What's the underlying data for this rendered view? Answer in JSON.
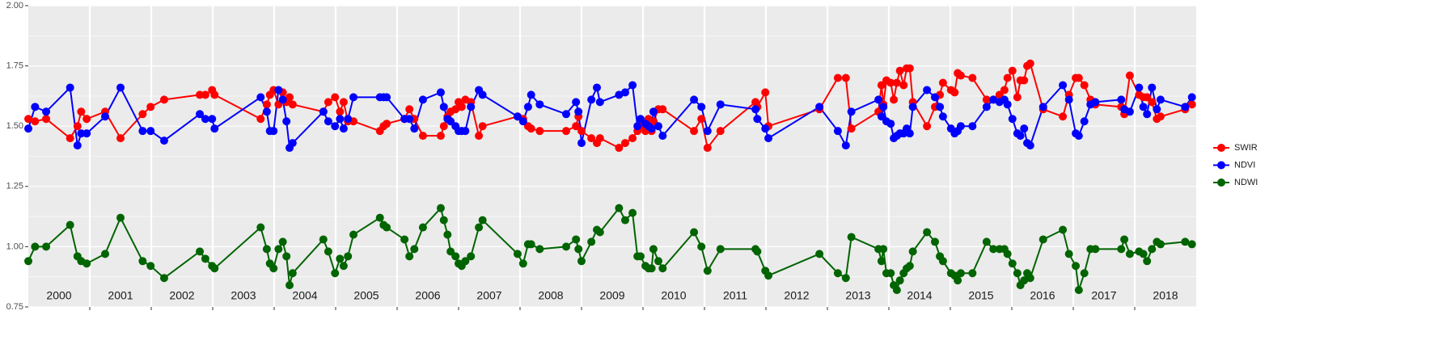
{
  "chart_data": {
    "type": "line",
    "x": [
      2000.0,
      2000.11,
      2000.29,
      2000.68,
      2000.8,
      2000.86,
      2000.95,
      2001.25,
      2001.5,
      2001.86,
      2001.99,
      2002.21,
      2002.79,
      2002.88,
      2002.99,
      2003.03,
      2003.78,
      2003.88,
      2003.93,
      2003.99,
      2004.07,
      2004.14,
      2004.2,
      2004.25,
      2004.3,
      2004.8,
      2004.88,
      2004.99,
      2005.07,
      2005.13,
      2005.2,
      2005.29,
      2005.72,
      2005.78,
      2005.83,
      2006.12,
      2006.2,
      2006.28,
      2006.42,
      2006.71,
      2006.76,
      2006.82,
      2006.87,
      2006.95,
      2007.0,
      2007.05,
      2007.11,
      2007.2,
      2007.33,
      2007.39,
      2007.96,
      2008.05,
      2008.13,
      2008.18,
      2008.32,
      2008.75,
      2008.91,
      2008.95,
      2009.0,
      2009.16,
      2009.25,
      2009.3,
      2009.61,
      2009.71,
      2009.83,
      2009.91,
      2009.96,
      2010.04,
      2010.09,
      2010.14,
      2010.17,
      2010.25,
      2010.32,
      2010.83,
      2010.95,
      2011.05,
      2011.26,
      2011.83,
      2011.86,
      2011.99,
      2012.04,
      2012.87,
      2013.17,
      2013.3,
      2013.39,
      2013.83,
      2013.88,
      2013.91,
      2013.96,
      2014.03,
      2014.08,
      2014.13,
      2014.18,
      2014.24,
      2014.29,
      2014.34,
      2014.39,
      2014.62,
      2014.75,
      2014.83,
      2014.88,
      2015.01,
      2015.07,
      2015.12,
      2015.17,
      2015.36,
      2015.59,
      2015.7,
      2015.8,
      2015.88,
      2015.93,
      2016.01,
      2016.09,
      2016.14,
      2016.2,
      2016.25,
      2016.3,
      2016.51,
      2016.83,
      2016.93,
      2017.04,
      2017.09,
      2017.18,
      2017.28,
      2017.36,
      2017.78,
      2017.83,
      2017.92,
      2018.07,
      2018.14,
      2018.2,
      2018.28,
      2018.36,
      2018.42,
      2018.82,
      2018.93
    ],
    "series": [
      {
        "name": "SWIR",
        "color": "#ff0000",
        "values": [
          1.53,
          1.52,
          1.53,
          1.45,
          1.5,
          1.56,
          1.53,
          1.56,
          1.45,
          1.55,
          1.58,
          1.61,
          1.63,
          1.63,
          1.65,
          1.63,
          1.53,
          1.59,
          1.63,
          1.65,
          1.59,
          1.64,
          1.6,
          1.62,
          1.59,
          1.56,
          1.6,
          1.62,
          1.56,
          1.6,
          1.52,
          1.52,
          1.48,
          1.5,
          1.51,
          1.53,
          1.57,
          1.53,
          1.46,
          1.46,
          1.5,
          1.54,
          1.56,
          1.57,
          1.6,
          1.58,
          1.61,
          1.6,
          1.46,
          1.5,
          1.54,
          1.53,
          1.5,
          1.49,
          1.48,
          1.48,
          1.5,
          1.54,
          1.48,
          1.45,
          1.43,
          1.45,
          1.41,
          1.43,
          1.45,
          1.48,
          1.5,
          1.48,
          1.53,
          1.48,
          1.52,
          1.57,
          1.57,
          1.48,
          1.53,
          1.41,
          1.48,
          1.6,
          1.58,
          1.64,
          1.5,
          1.57,
          1.7,
          1.7,
          1.49,
          1.56,
          1.67,
          1.59,
          1.69,
          1.68,
          1.61,
          1.68,
          1.73,
          1.67,
          1.74,
          1.74,
          1.6,
          1.5,
          1.58,
          1.63,
          1.68,
          1.65,
          1.64,
          1.72,
          1.71,
          1.7,
          1.61,
          1.61,
          1.63,
          1.65,
          1.7,
          1.73,
          1.62,
          1.69,
          1.69,
          1.75,
          1.76,
          1.57,
          1.54,
          1.63,
          1.7,
          1.7,
          1.67,
          1.61,
          1.59,
          1.58,
          1.55,
          1.71,
          1.63,
          1.62,
          1.62,
          1.6,
          1.53,
          1.54,
          1.57,
          1.59
        ]
      },
      {
        "name": "NDVI",
        "color": "#0000ff",
        "values": [
          1.49,
          1.58,
          1.56,
          1.66,
          1.42,
          1.47,
          1.47,
          1.54,
          1.66,
          1.48,
          1.48,
          1.44,
          1.55,
          1.53,
          1.53,
          1.49,
          1.62,
          1.56,
          1.48,
          1.48,
          1.65,
          1.61,
          1.52,
          1.41,
          1.43,
          1.56,
          1.52,
          1.5,
          1.53,
          1.49,
          1.53,
          1.62,
          1.62,
          1.62,
          1.62,
          1.53,
          1.53,
          1.49,
          1.61,
          1.64,
          1.58,
          1.53,
          1.52,
          1.5,
          1.48,
          1.48,
          1.48,
          1.58,
          1.65,
          1.63,
          1.54,
          1.52,
          1.58,
          1.63,
          1.59,
          1.55,
          1.6,
          1.56,
          1.43,
          1.61,
          1.66,
          1.6,
          1.63,
          1.64,
          1.67,
          1.5,
          1.53,
          1.51,
          1.5,
          1.49,
          1.56,
          1.5,
          1.46,
          1.61,
          1.58,
          1.48,
          1.59,
          1.57,
          1.53,
          1.49,
          1.45,
          1.58,
          1.48,
          1.42,
          1.56,
          1.61,
          1.54,
          1.58,
          1.52,
          1.51,
          1.45,
          1.46,
          1.47,
          1.47,
          1.49,
          1.47,
          1.58,
          1.65,
          1.62,
          1.58,
          1.54,
          1.49,
          1.47,
          1.48,
          1.5,
          1.5,
          1.58,
          1.61,
          1.6,
          1.61,
          1.59,
          1.53,
          1.47,
          1.46,
          1.49,
          1.43,
          1.42,
          1.58,
          1.67,
          1.61,
          1.47,
          1.46,
          1.52,
          1.59,
          1.6,
          1.61,
          1.57,
          1.56,
          1.66,
          1.58,
          1.55,
          1.66,
          1.57,
          1.61,
          1.58,
          1.62
        ]
      },
      {
        "name": "NDWI",
        "color": "#006400",
        "values": [
          0.94,
          1.0,
          1.0,
          1.09,
          0.96,
          0.94,
          0.93,
          0.97,
          1.12,
          0.94,
          0.92,
          0.87,
          0.98,
          0.95,
          0.92,
          0.91,
          1.08,
          0.99,
          0.93,
          0.91,
          0.99,
          1.02,
          0.96,
          0.84,
          0.89,
          1.03,
          0.98,
          0.89,
          0.95,
          0.92,
          0.96,
          1.05,
          1.12,
          1.09,
          1.08,
          1.03,
          0.96,
          0.99,
          1.08,
          1.16,
          1.11,
          1.05,
          0.98,
          0.96,
          0.93,
          0.92,
          0.94,
          0.96,
          1.08,
          1.11,
          0.97,
          0.93,
          1.01,
          1.01,
          0.99,
          1.0,
          1.03,
          0.99,
          0.94,
          1.02,
          1.07,
          1.06,
          1.16,
          1.11,
          1.14,
          0.96,
          0.96,
          0.92,
          0.91,
          0.91,
          0.99,
          0.94,
          0.91,
          1.06,
          1.0,
          0.9,
          0.99,
          0.99,
          0.98,
          0.9,
          0.88,
          0.97,
          0.89,
          0.87,
          1.04,
          0.99,
          0.94,
          0.99,
          0.89,
          0.89,
          0.84,
          0.82,
          0.86,
          0.89,
          0.91,
          0.92,
          0.98,
          1.06,
          1.02,
          0.96,
          0.94,
          0.89,
          0.88,
          0.86,
          0.89,
          0.89,
          1.02,
          0.99,
          0.99,
          0.99,
          0.97,
          0.93,
          0.89,
          0.84,
          0.86,
          0.89,
          0.87,
          1.03,
          1.07,
          0.97,
          0.92,
          0.82,
          0.89,
          0.99,
          0.99,
          0.99,
          1.03,
          0.97,
          0.98,
          0.97,
          0.94,
          0.99,
          1.02,
          1.01,
          1.02,
          1.01
        ]
      }
    ],
    "xlim": [
      2000,
      2019
    ],
    "xticks": [
      {
        "value": 2000.5,
        "label": "2000"
      },
      {
        "value": 2001.5,
        "label": "2001"
      },
      {
        "value": 2002.5,
        "label": "2002"
      },
      {
        "value": 2003.5,
        "label": "2003"
      },
      {
        "value": 2004.5,
        "label": "2004"
      },
      {
        "value": 2005.5,
        "label": "2005"
      },
      {
        "value": 2006.5,
        "label": "2006"
      },
      {
        "value": 2007.5,
        "label": "2007"
      },
      {
        "value": 2008.5,
        "label": "2008"
      },
      {
        "value": 2009.5,
        "label": "2009"
      },
      {
        "value": 2010.5,
        "label": "2010"
      },
      {
        "value": 2011.5,
        "label": "2011"
      },
      {
        "value": 2012.5,
        "label": "2012"
      },
      {
        "value": 2013.5,
        "label": "2013"
      },
      {
        "value": 2014.5,
        "label": "2014"
      },
      {
        "value": 2015.5,
        "label": "2015"
      },
      {
        "value": 2016.5,
        "label": "2016"
      },
      {
        "value": 2017.5,
        "label": "2017"
      },
      {
        "value": 2018.5,
        "label": "2018"
      }
    ],
    "xbreaks": [
      2001,
      2002,
      2003,
      2004,
      2005,
      2006,
      2007,
      2008,
      2009,
      2010,
      2011,
      2012,
      2013,
      2014,
      2015,
      2016,
      2017,
      2018
    ],
    "ylim": [
      0.75,
      2.0
    ],
    "yticks": [
      0.75,
      {
        "value": 1.0,
        "label": "1.00"
      },
      1.25,
      {
        "value": 1.5,
        "label": "1.50"
      },
      1.75,
      {
        "value": 2.0,
        "label": "2.00"
      }
    ],
    "grid": true,
    "legend": "right"
  }
}
